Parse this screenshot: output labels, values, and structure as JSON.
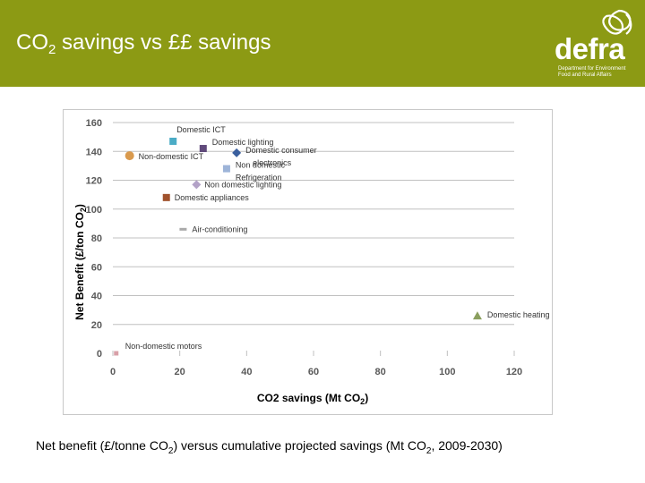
{
  "header": {
    "title_pre": "CO",
    "title_sub": "2",
    "title_post": " savings vs ££ savings",
    "bg_color": "#8c9a14"
  },
  "logo": {
    "word": "defra",
    "line1": "Department for Environment",
    "line2": "Food and Rural Affairs",
    "icon": "leaf-knot-icon"
  },
  "caption": {
    "p1": "Net benefit (£/tonne CO",
    "s1": "2",
    "p2": ") versus cumulative projected savings (Mt CO",
    "s2": "2",
    "p3": ", 2009-2030)"
  },
  "chart_data": {
    "type": "scatter",
    "xlabel": "CO2 savings (Mt CO",
    "xlabel_sub": "2",
    "xlabel_end": ")",
    "ylabel": "Net Benefit (£/ton CO",
    "ylabel_sub": "2",
    "ylabel_end": ")",
    "xlim": [
      0,
      120
    ],
    "ylim": [
      0,
      160
    ],
    "xticks": [
      "0",
      "20",
      "40",
      "60",
      "80",
      "100",
      "120"
    ],
    "yticks": [
      "0",
      "20",
      "40",
      "60",
      "80",
      "100",
      "120",
      "140",
      "160"
    ],
    "grid": "horizontal",
    "points": [
      {
        "label": "Domestic ICT",
        "x": 18,
        "y": 147,
        "color": "#4bacc6",
        "marker": "square"
      },
      {
        "label": "Domestic lighting",
        "x": 27,
        "y": 142,
        "color": "#604a7b",
        "marker": "square"
      },
      {
        "label": "Non-domestic ICT",
        "x": 5,
        "y": 137,
        "color": "#d99a4e",
        "marker": "circle"
      },
      {
        "label": "Domestic consumer electronics",
        "x": 37,
        "y": 139,
        "color": "#3a5f9e",
        "marker": "diamond"
      },
      {
        "label": "Non domestic Refrigeration",
        "x": 34,
        "y": 128,
        "color": "#9db4d8",
        "marker": "square"
      },
      {
        "label": "Non domestic lighting",
        "x": 25,
        "y": 117,
        "color": "#b3a2c7",
        "marker": "diamond"
      },
      {
        "label": "Domestic appliances",
        "x": 16,
        "y": 108,
        "color": "#a0522d",
        "marker": "square"
      },
      {
        "label": "Air-conditioning",
        "x": 21,
        "y": 86,
        "color": "#aaaaaa",
        "marker": "dash"
      },
      {
        "label": "Domestic heating",
        "x": 109,
        "y": 26,
        "color": "#8b9f5e",
        "marker": "triangle"
      },
      {
        "label": "Non-domestic motors",
        "x": 1,
        "y": 0,
        "color": "#d8a0a8",
        "marker": "small-square"
      }
    ]
  }
}
